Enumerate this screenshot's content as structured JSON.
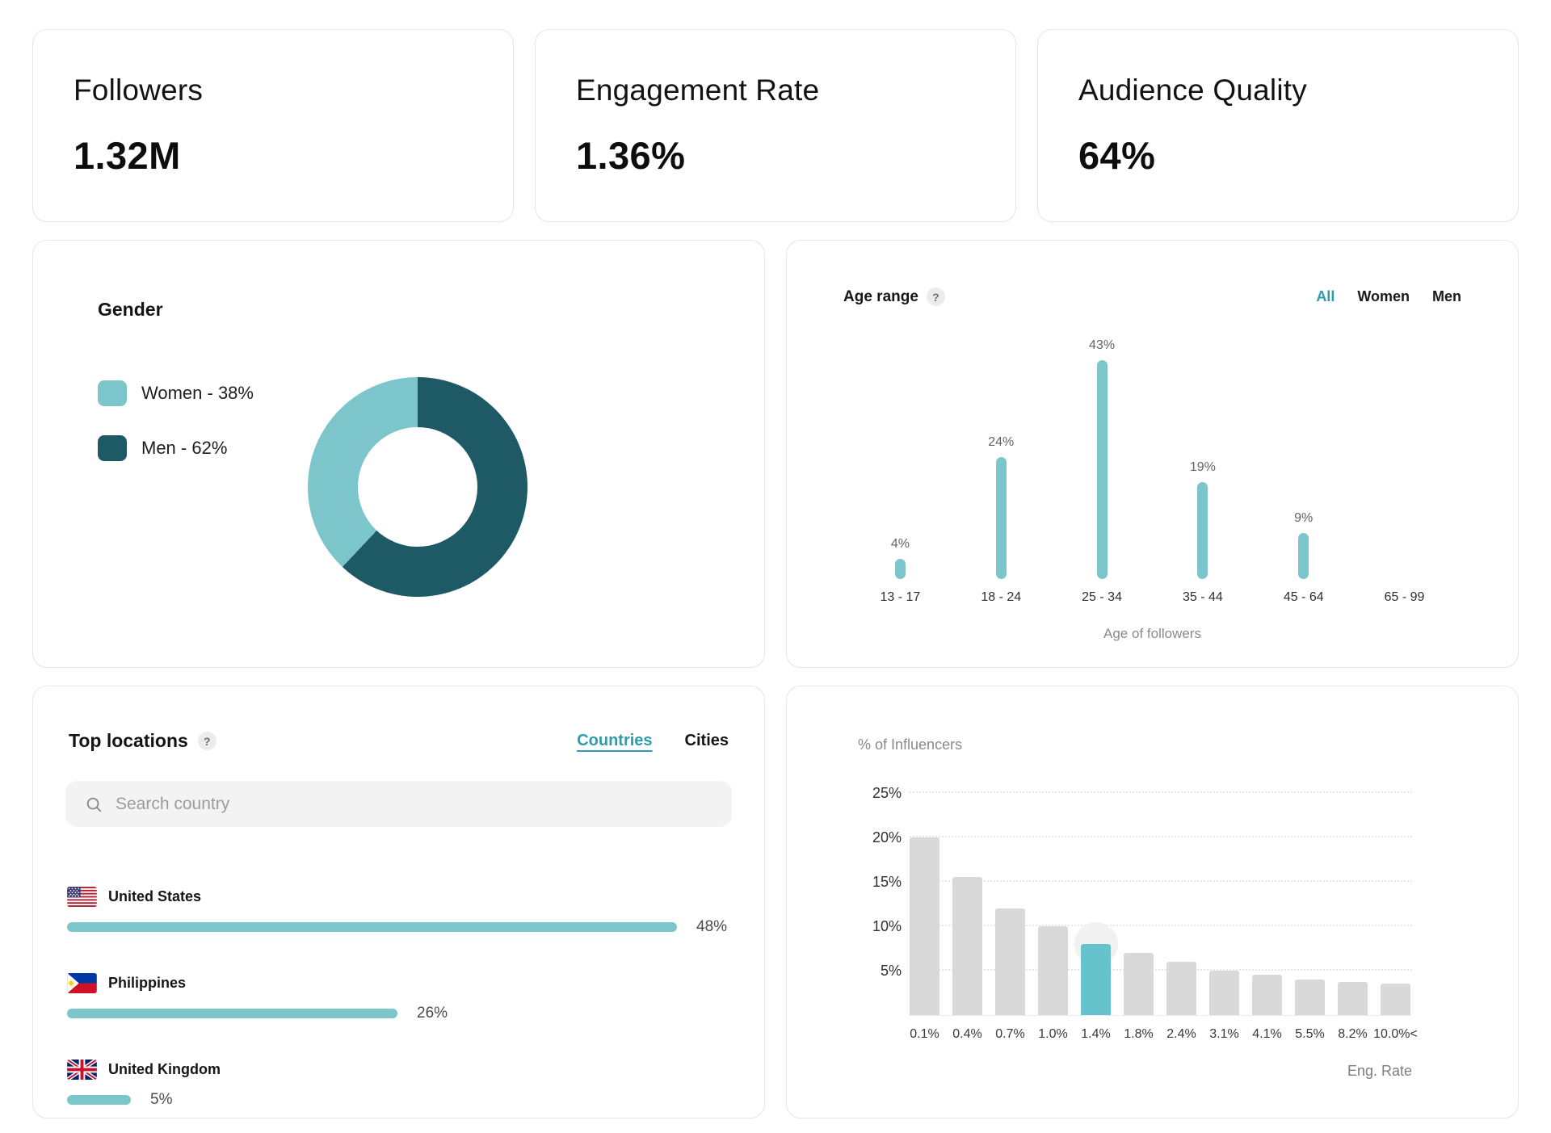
{
  "colors": {
    "teal_light": "#7cc6cb",
    "teal_dark": "#1e5a66",
    "tab_teal": "#2e9daa",
    "bar_gray": "#d9d9d9",
    "bar_highlight": "#66c2cd"
  },
  "ui": {
    "help": "?"
  },
  "stats": [
    {
      "label": "Followers",
      "value": "1.32M"
    },
    {
      "label": "Engagement Rate",
      "value": "1.36%"
    },
    {
      "label": "Audience Quality",
      "value": "64%"
    }
  ],
  "gender": {
    "title": "Gender",
    "legend": [
      {
        "label": "Women - 38%"
      },
      {
        "label": "Men - 62%"
      }
    ]
  },
  "age": {
    "title": "Age range",
    "tabs": [
      "All",
      "Women",
      "Men"
    ],
    "active_tab": "All"
  },
  "locations": {
    "title": "Top locations",
    "tabs": [
      "Countries",
      "Cities"
    ],
    "active_tab": "Countries",
    "search_placeholder": "Search country",
    "items": [
      {
        "name": "United States",
        "value": 48,
        "value_label": "48%",
        "flag": "us"
      },
      {
        "name": "Philippines",
        "value": 26,
        "value_label": "26%",
        "flag": "ph"
      },
      {
        "name": "United Kingdom",
        "value": 5,
        "value_label": "5%",
        "flag": "gb"
      }
    ]
  },
  "chart_data": [
    {
      "type": "pie",
      "name": "gender-donut",
      "slices": [
        {
          "label": "Women",
          "value": 38
        },
        {
          "label": "Men",
          "value": 62
        }
      ]
    },
    {
      "type": "bar",
      "name": "age-range",
      "categories": [
        "13 - 17",
        "18 - 24",
        "25 - 34",
        "35 - 44",
        "45 - 64",
        "65 - 99"
      ],
      "values": [
        4,
        24,
        43,
        19,
        9,
        0
      ],
      "value_labels": [
        "4%",
        "24%",
        "43%",
        "19%",
        "9%",
        ""
      ],
      "xlabel": "Age of followers",
      "ylim": [
        0,
        50
      ]
    },
    {
      "type": "bar",
      "name": "top-locations",
      "categories": [
        "United States",
        "Philippines",
        "United Kingdom"
      ],
      "values": [
        48,
        26,
        5
      ]
    },
    {
      "type": "bar",
      "name": "eng-rate-distribution",
      "title": "",
      "ylabel": "% of Influencers",
      "xlabel": "Eng. Rate",
      "categories": [
        "0.1%",
        "0.4%",
        "0.7%",
        "1.0%",
        "1.4%",
        "1.8%",
        "2.4%",
        "3.1%",
        "4.1%",
        "5.5%",
        "8.2%",
        "10.0%<"
      ],
      "values": [
        20,
        15.5,
        12,
        10,
        8,
        7,
        6,
        5,
        4.5,
        4,
        3.7,
        3.5
      ],
      "highlight_index": 4,
      "yticks": [
        "5%",
        "10%",
        "15%",
        "20%",
        "25%"
      ],
      "ytick_values": [
        5,
        10,
        15,
        20,
        25
      ],
      "ylim": [
        0,
        27
      ],
      "grid": true
    }
  ]
}
